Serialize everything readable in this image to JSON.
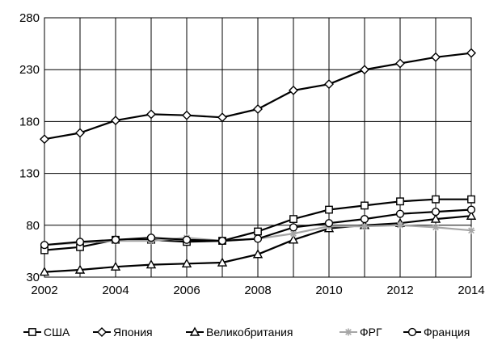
{
  "chart_data": {
    "type": "line",
    "title": "",
    "xlabel": "",
    "ylabel": "",
    "x": [
      2002,
      2003,
      2004,
      2005,
      2006,
      2007,
      2008,
      2009,
      2010,
      2011,
      2012,
      2013,
      2014
    ],
    "xticks": [
      "2002",
      "2004",
      "2006",
      "2008",
      "2010",
      "2012",
      "2014"
    ],
    "yticks": [
      "30",
      "80",
      "130",
      "180",
      "230",
      "280"
    ],
    "xlim": [
      2002,
      2014
    ],
    "ylim": [
      30,
      280
    ],
    "grid": "vertical and horizontal gridlines",
    "legend_position": "bottom",
    "series": [
      {
        "name": "США",
        "marker": "square",
        "color": "#000000",
        "values": [
          56,
          59,
          66,
          66,
          64,
          65,
          74,
          86,
          95,
          99,
          103,
          105,
          105
        ]
      },
      {
        "name": "Япония",
        "marker": "diamond",
        "color": "#000000",
        "values": [
          163,
          169,
          181,
          187,
          186,
          184,
          192,
          210,
          216,
          230,
          236,
          242,
          246
        ]
      },
      {
        "name": "Великобритания",
        "marker": "triangle",
        "color": "#000000",
        "values": [
          35,
          37,
          40,
          42,
          43,
          44,
          52,
          66,
          77,
          80,
          82,
          86,
          89
        ]
      },
      {
        "name": "ФРГ",
        "marker": "star",
        "color": "#a6a6a6",
        "values": [
          61,
          63,
          65,
          65,
          68,
          65,
          67,
          72,
          79,
          79,
          80,
          78,
          75
        ]
      },
      {
        "name": "Франция",
        "marker": "circle",
        "color": "#000000",
        "values": [
          61,
          64,
          66,
          68,
          66,
          65,
          67,
          78,
          82,
          86,
          91,
          93,
          95
        ]
      }
    ]
  }
}
